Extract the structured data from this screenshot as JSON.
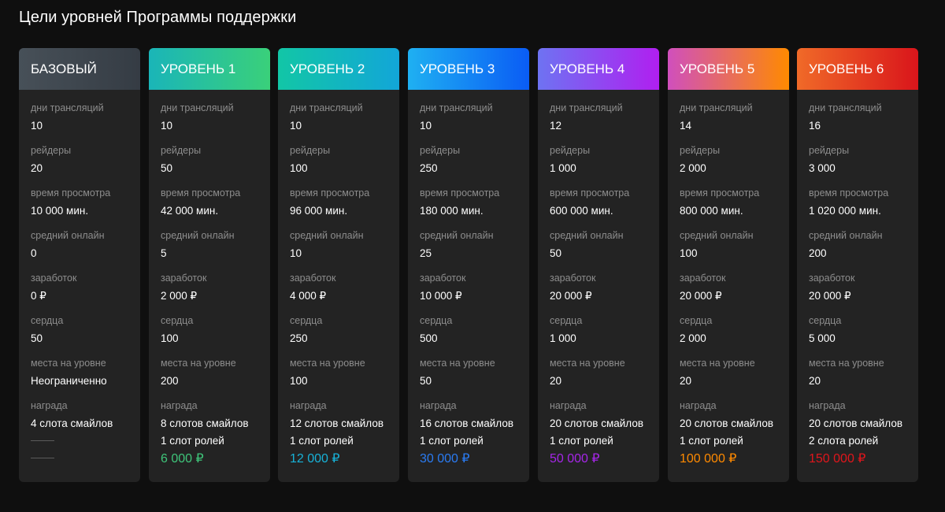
{
  "page": {
    "title": "Цели уровней Программы поддержки"
  },
  "labels": {
    "stream_days": "дни трансляций",
    "raiders": "рейдеры",
    "watch_time": "время просмотра",
    "avg_online": "средний онлайн",
    "earnings": "заработок",
    "hearts": "сердца",
    "places": "места на уровне",
    "reward": "награда"
  },
  "levels": [
    {
      "name": "БАЗОВЫЙ",
      "gradient": [
        "#475058",
        "#353c44"
      ],
      "stream_days": "10",
      "raiders": "20",
      "watch_time": "10 000 мин.",
      "avg_online": "0",
      "earnings": "0 ₽",
      "hearts": "50",
      "places": "Неограниченно",
      "reward_line1": "4 слота смайлов",
      "reward_line2": "",
      "reward_price": "",
      "price_color": "#ffffff"
    },
    {
      "name": "УРОВЕНЬ 1",
      "gradient": [
        "#1ab5b8",
        "#3ad07a"
      ],
      "stream_days": "10",
      "raiders": "50",
      "watch_time": "42 000 мин.",
      "avg_online": "5",
      "earnings": "2 000 ₽",
      "hearts": "100",
      "places": "200",
      "reward_line1": "8 слотов смайлов",
      "reward_line2": "1 слот ролей",
      "reward_price": "6 000 ₽",
      "price_color": "#3fc57a"
    },
    {
      "name": "УРОВЕНЬ 2",
      "gradient": [
        "#12c6a6",
        "#12a6d8"
      ],
      "stream_days": "10",
      "raiders": "100",
      "watch_time": "96 000 мин.",
      "avg_online": "10",
      "earnings": "4 000 ₽",
      "hearts": "250",
      "places": "100",
      "reward_line1": "12 слотов смайлов",
      "reward_line2": "1 слот ролей",
      "reward_price": "12 000 ₽",
      "price_color": "#17b2d8"
    },
    {
      "name": "УРОВЕНЬ 3",
      "gradient": [
        "#1fb0f2",
        "#0a5cf5"
      ],
      "stream_days": "10",
      "raiders": "250",
      "watch_time": "180 000 мин.",
      "avg_online": "25",
      "earnings": "10 000 ₽",
      "hearts": "500",
      "places": "50",
      "reward_line1": "16 слотов смайлов",
      "reward_line2": "1 слот ролей",
      "reward_price": "30 000 ₽",
      "price_color": "#2a7bf2"
    },
    {
      "name": "УРОВЕНЬ 4",
      "gradient": [
        "#6e73f2",
        "#b01ff0"
      ],
      "stream_days": "12",
      "raiders": "1 000",
      "watch_time": "600 000 мин.",
      "avg_online": "50",
      "earnings": "20 000 ₽",
      "hearts": "1 000",
      "places": "20",
      "reward_line1": "20 слотов смайлов",
      "reward_line2": "1 слот ролей",
      "reward_price": "50 000 ₽",
      "price_color": "#a526e8"
    },
    {
      "name": "УРОВЕНЬ 5",
      "gradient": [
        "#d04fbd",
        "#ff8a00"
      ],
      "stream_days": "14",
      "raiders": "2 000",
      "watch_time": "800 000 мин.",
      "avg_online": "100",
      "earnings": "20 000 ₽",
      "hearts": "2 000",
      "places": "20",
      "reward_line1": "20 слотов смайлов",
      "reward_line2": "1 слот ролей",
      "reward_price": "100 000 ₽",
      "price_color": "#ff8a00"
    },
    {
      "name": "УРОВЕНЬ 6",
      "gradient": [
        "#f06a28",
        "#d9151b"
      ],
      "stream_days": "16",
      "raiders": "3 000",
      "watch_time": "1 020 000 мин.",
      "avg_online": "200",
      "earnings": "20 000 ₽",
      "hearts": "5 000",
      "places": "20",
      "reward_line1": "20 слотов смайлов",
      "reward_line2": "2 слота ролей",
      "reward_price": "150 000 ₽",
      "price_color": "#e0161c"
    }
  ]
}
